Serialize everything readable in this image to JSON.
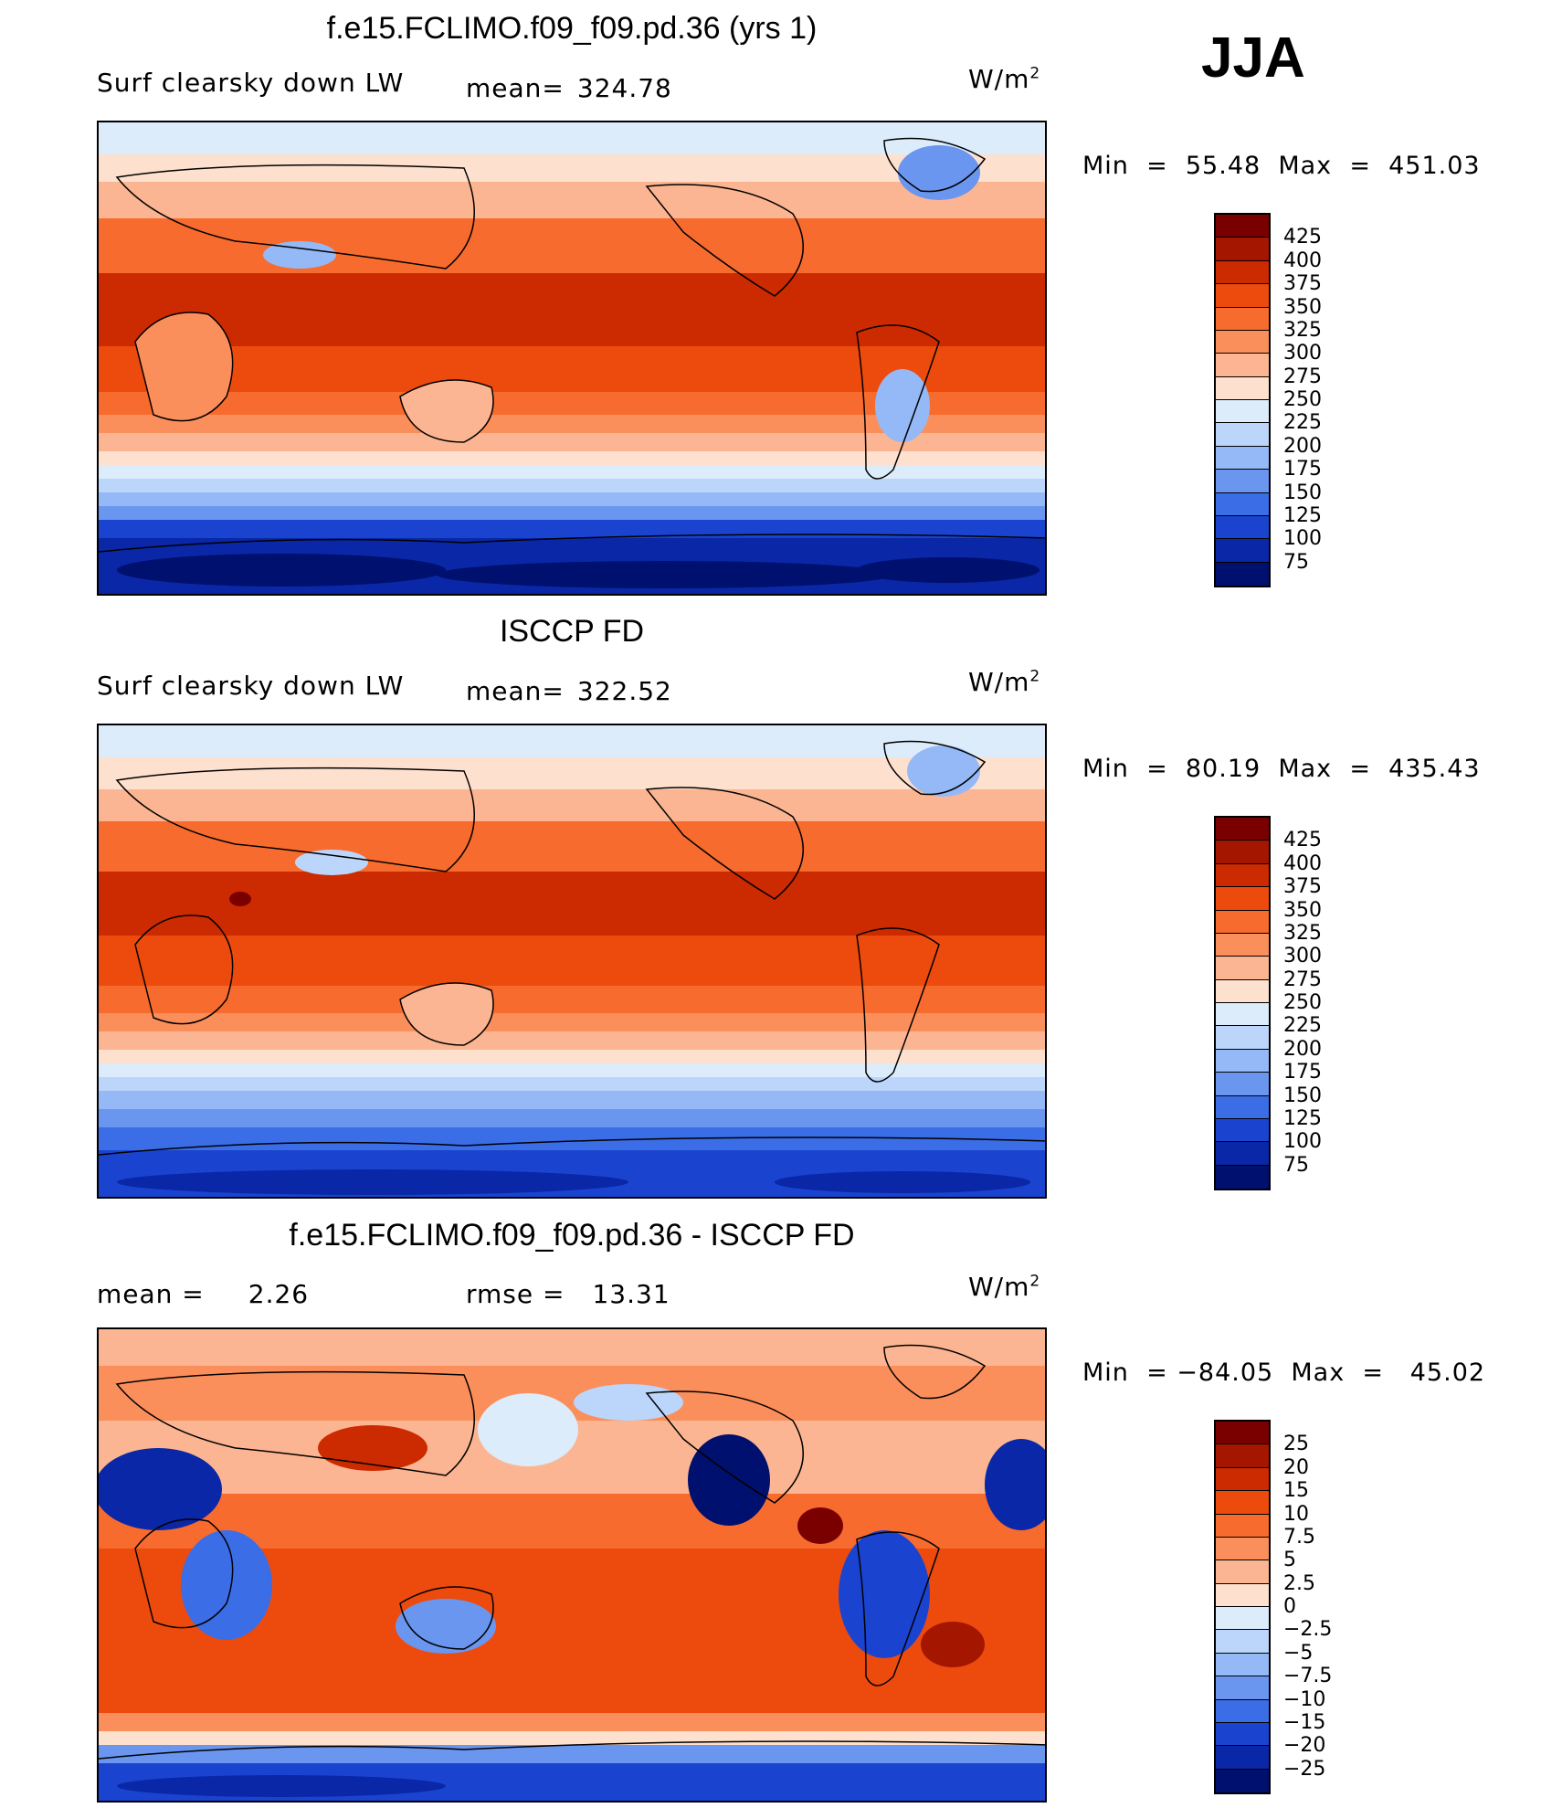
{
  "season": "JJA",
  "panels": [
    {
      "title": "f.e15.FCLIMO.f09_f09.pd.36 (yrs 1)",
      "left_label": "Surf clearsky down LW",
      "stat_label": "mean=",
      "stat_value": "324.78",
      "units_base": "W/m",
      "units_exp": "2",
      "min_label": "Min  =",
      "min_value": "55.48",
      "max_label": "Max  =",
      "max_value": "451.03",
      "colorbar_labels": [
        "425",
        "400",
        "375",
        "350",
        "325",
        "300",
        "275",
        "250",
        "225",
        "200",
        "175",
        "150",
        "125",
        "100",
        "75"
      ],
      "colorbar_colors": [
        "#7a0000",
        "#a51600",
        "#cc2a00",
        "#ec4b0d",
        "#f76b2e",
        "#fb8f5c",
        "#fcb592",
        "#fde0cd",
        "#dcecfb",
        "#bcd5fa",
        "#95b9f6",
        "#6a96f0",
        "#3b6de6",
        "#1a44d0",
        "#0927a6",
        "#00106e"
      ]
    },
    {
      "title": "ISCCP FD",
      "left_label": "Surf clearsky down LW",
      "stat_label": "mean=",
      "stat_value": "322.52",
      "units_base": "W/m",
      "units_exp": "2",
      "min_label": "Min  =",
      "min_value": "80.19",
      "max_label": "Max  =",
      "max_value": "435.43",
      "colorbar_labels": [
        "425",
        "400",
        "375",
        "350",
        "325",
        "300",
        "275",
        "250",
        "225",
        "200",
        "175",
        "150",
        "125",
        "100",
        "75"
      ],
      "colorbar_colors": [
        "#7a0000",
        "#a51600",
        "#cc2a00",
        "#ec4b0d",
        "#f76b2e",
        "#fb8f5c",
        "#fcb592",
        "#fde0cd",
        "#dcecfb",
        "#bcd5fa",
        "#95b9f6",
        "#6a96f0",
        "#3b6de6",
        "#1a44d0",
        "#0927a6",
        "#00106e"
      ]
    },
    {
      "title": "f.e15.FCLIMO.f09_f09.pd.36 - ISCCP FD",
      "left_label": "mean =",
      "left_value": "2.26",
      "stat_label": "rmse =",
      "stat_value": "13.31",
      "units_base": "W/m",
      "units_exp": "2",
      "min_label": "Min  =",
      "min_value": "−84.05",
      "max_label": "Max  =",
      "max_value": "45.02",
      "colorbar_labels": [
        "25",
        "20",
        "15",
        "10",
        "7.5",
        "5",
        "2.5",
        "0",
        "−2.5",
        "−5",
        "−7.5",
        "−10",
        "−15",
        "−20",
        "−25"
      ],
      "colorbar_colors": [
        "#7a0000",
        "#a51600",
        "#cc2a00",
        "#ec4b0d",
        "#f76b2e",
        "#fb8f5c",
        "#fcb592",
        "#fde0cd",
        "#dcecfb",
        "#bcd5fa",
        "#95b9f6",
        "#6a96f0",
        "#3b6de6",
        "#1a44d0",
        "#0927a6",
        "#00106e"
      ]
    }
  ]
}
